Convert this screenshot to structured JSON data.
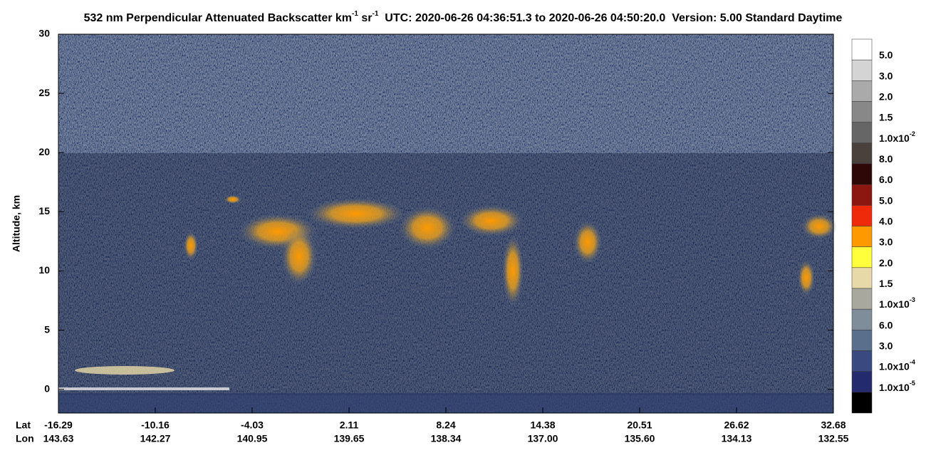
{
  "chart_data": {
    "type": "curtain",
    "title": [
      "532 nm Perpendicular Attenuated Backscatter km",
      "-1",
      " sr",
      "-1",
      "  UTC: 2020-06-26 04:36:51.3 to 2020-06-26 04:50:20.0  Version: 5.00 Standard Daytime"
    ],
    "y_label": "Altitude, km",
    "ylim": [
      -2,
      30
    ],
    "yticks": [
      0,
      5,
      10,
      15,
      20,
      25,
      30
    ],
    "x_row_labels": [
      "Lat",
      "Lon"
    ],
    "xticks": [
      {
        "lat": "-16.29",
        "lon": "143.63"
      },
      {
        "lat": "-10.16",
        "lon": "142.27"
      },
      {
        "lat": "-4.03",
        "lon": "140.95"
      },
      {
        "lat": "2.11",
        "lon": "139.65"
      },
      {
        "lat": "8.24",
        "lon": "138.34"
      },
      {
        "lat": "14.38",
        "lon": "137.00"
      },
      {
        "lat": "20.51",
        "lon": "135.60"
      },
      {
        "lat": "26.62",
        "lon": "134.13"
      },
      {
        "lat": "32.68",
        "lon": "132.55"
      }
    ],
    "colorbar": [
      {
        "color": "#ffffff",
        "label": [
          "5.0"
        ]
      },
      {
        "color": "#d4d4d4",
        "label": [
          "3.0"
        ]
      },
      {
        "color": "#aaaaaa",
        "label": [
          "2.0"
        ]
      },
      {
        "color": "#888888",
        "label": [
          "1.5"
        ]
      },
      {
        "color": "#666666",
        "label": [
          "1.0x10",
          "-2"
        ]
      },
      {
        "color": "#4a403c",
        "label": [
          "8.0"
        ]
      },
      {
        "color": "#2e0806",
        "label": [
          "6.0"
        ]
      },
      {
        "color": "#8b1710",
        "label": [
          "5.0"
        ]
      },
      {
        "color": "#ee2a0a",
        "label": [
          "4.0"
        ]
      },
      {
        "color": "#ff9900",
        "label": [
          "3.0"
        ]
      },
      {
        "color": "#ffff3c",
        "label": [
          "2.0"
        ]
      },
      {
        "color": "#e8d9a8",
        "label": [
          "1.5"
        ]
      },
      {
        "color": "#a8a89e",
        "label": [
          "1.0x10",
          "-3"
        ]
      },
      {
        "color": "#7f8c99",
        "label": [
          "6.0"
        ]
      },
      {
        "color": "#5a6f8c",
        "label": [
          "3.0"
        ]
      },
      {
        "color": "#3a4a80",
        "label": [
          "1.0x10",
          "-4"
        ]
      },
      {
        "color": "#242a6e",
        "label": [
          "1.0x10",
          "-5"
        ]
      },
      {
        "color": "#000000",
        "label": null
      }
    ]
  }
}
